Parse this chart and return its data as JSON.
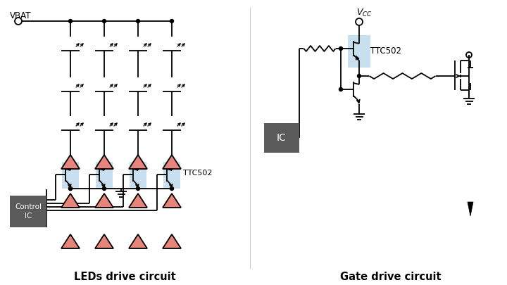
{
  "bg_color": "#ffffff",
  "line_color": "#000000",
  "led_fill": "#e8857a",
  "transistor_highlight": "#c8dff0",
  "ic_box_color": "#5a5a5a",
  "ic_text_color": "#ffffff",
  "title_left": "LEDs drive circuit",
  "title_right": "Gate drive circuit",
  "label_vbat": "VBAT",
  "label_ttc502_left": "TTC502",
  "label_ttc502_right": "TTC502",
  "label_ic_left": "Control\nIC",
  "label_ic_right": "IC"
}
